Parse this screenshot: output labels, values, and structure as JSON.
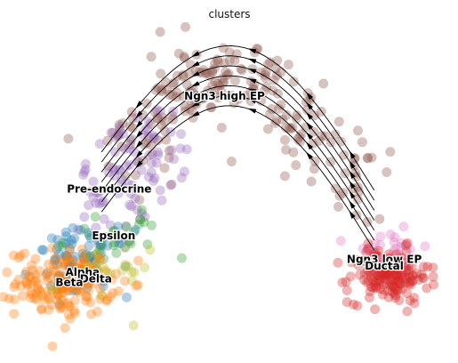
{
  "chart_data": {
    "type": "scatter",
    "title": "clusters",
    "xlabel": "",
    "ylabel": "",
    "xlim": [
      0,
      100
    ],
    "ylim": [
      0,
      100
    ],
    "grid": false,
    "legend": "on data",
    "overlay": "velocity stream arrows",
    "clusters": [
      {
        "name": "Ngn3 high EP",
        "color": "#8c564b",
        "center": [
          48,
          74
        ],
        "count": 230
      },
      {
        "name": "Pre-endocrine",
        "color": "#9467bd",
        "center": [
          23,
          48
        ],
        "count": 90
      },
      {
        "name": "Epsilon",
        "color": "#2ca02c",
        "center": [
          24,
          35
        ],
        "count": 30
      },
      {
        "name": "Alpha",
        "color": "#1f77b4",
        "center": [
          17,
          28
        ],
        "count": 70
      },
      {
        "name": "Beta",
        "color": "#ff7f0e",
        "center": [
          13,
          22
        ],
        "count": 170
      },
      {
        "name": "Delta",
        "color": "#bcbd22",
        "center": [
          21,
          24
        ],
        "count": 20
      },
      {
        "name": "Ngn3 low EP",
        "color": "#e377c2",
        "center": [
          86,
          30
        ],
        "count": 40
      },
      {
        "name": "Ductal",
        "color": "#d62728",
        "center": [
          86,
          24
        ],
        "count": 160
      }
    ],
    "labels": [
      {
        "text": "Ngn3 high EP",
        "x": 49,
        "y": 77
      },
      {
        "text": "Pre-endocrine",
        "x": 23,
        "y": 49
      },
      {
        "text": "Epsilon",
        "x": 24,
        "y": 35
      },
      {
        "text": "Alpha",
        "x": 17,
        "y": 24
      },
      {
        "text": "Delta",
        "x": 20,
        "y": 22
      },
      {
        "text": "Beta",
        "x": 14,
        "y": 21
      },
      {
        "text": "Ngn3 low EP",
        "x": 85,
        "y": 28
      },
      {
        "text": "Ductal",
        "x": 85,
        "y": 26
      }
    ]
  }
}
